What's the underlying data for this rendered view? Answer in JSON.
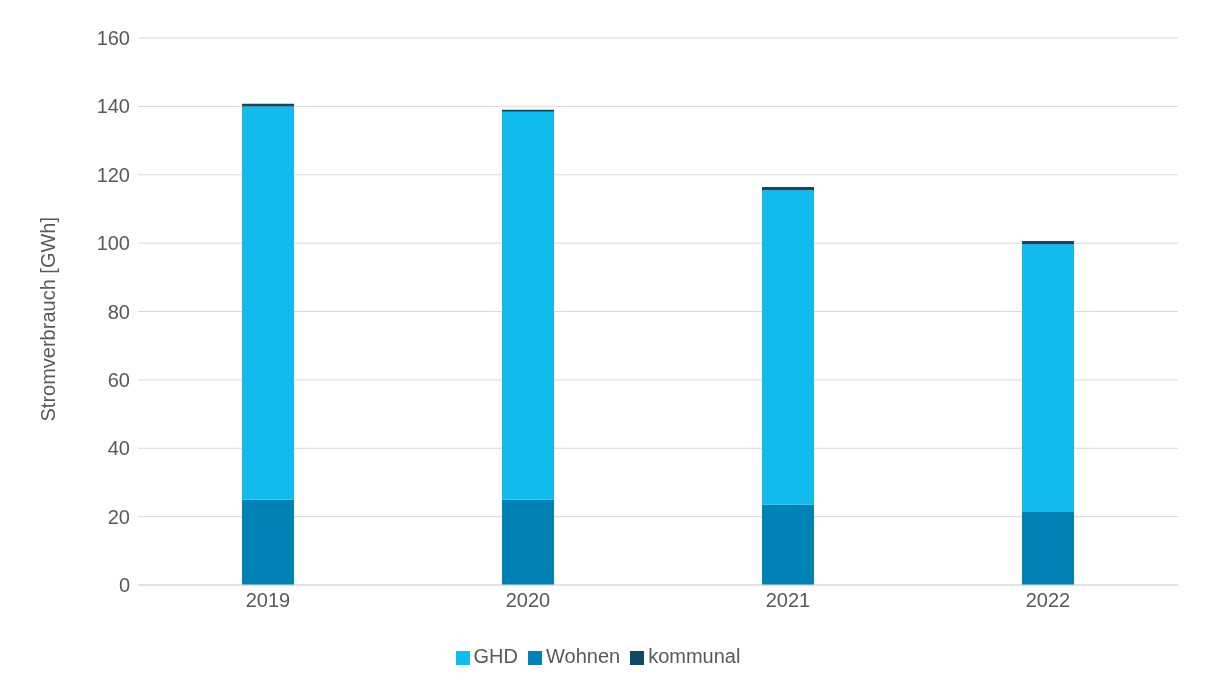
{
  "chart_data": {
    "type": "bar",
    "ylabel": "Stromverbrauch [GWh]",
    "categories": [
      "2019",
      "2020",
      "2021",
      "2022"
    ],
    "stacked": true,
    "series": [
      {
        "name": "Wohnen",
        "color": "#0083b4",
        "values": [
          25,
          25,
          23.5,
          21.6
        ]
      },
      {
        "name": "GHD",
        "color": "#12bbee",
        "values": [
          115,
          113.4,
          92,
          78.1
        ]
      },
      {
        "name": "kommunal",
        "color": "#0d4a63",
        "values": [
          0.8,
          0.6,
          0.9,
          0.9
        ]
      }
    ],
    "ylim": [
      0,
      160
    ],
    "yticks": [
      0,
      20,
      40,
      60,
      80,
      100,
      120,
      140,
      160
    ],
    "grid": "y",
    "legend": "bottom"
  }
}
